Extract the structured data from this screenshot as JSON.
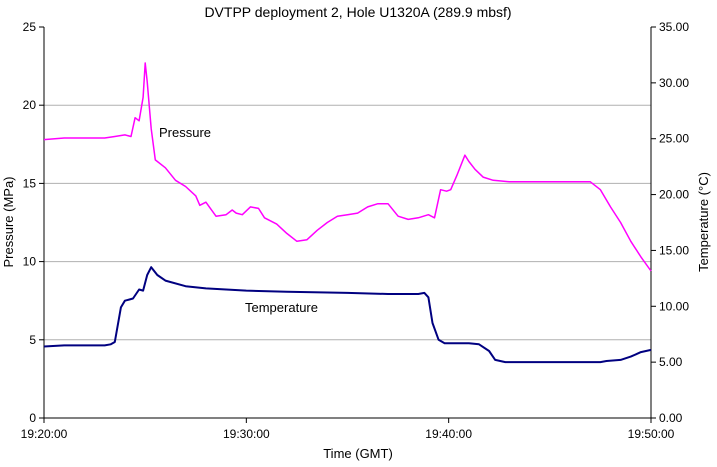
{
  "chart_data": {
    "type": "line",
    "title": "DVTPP deployment 2, Hole U1320A (289.9 mbsf)",
    "xlabel": "Time (GMT)",
    "ylabel_left": "Pressure (MPa)",
    "ylabel_right": "Temperature (°C)",
    "x_ticks": [
      "19:20:00",
      "19:30:00",
      "19:40:00",
      "19:50:00"
    ],
    "x_range_minutes": [
      0,
      30
    ],
    "y_left_ticks": [
      "0",
      "5",
      "10",
      "15",
      "20",
      "25"
    ],
    "y_left_range": [
      0,
      25
    ],
    "y_right_ticks": [
      "0.00",
      "5.00",
      "10.00",
      "15.00",
      "20.00",
      "25.00",
      "30.00",
      "35.00"
    ],
    "y_right_range": [
      0,
      35
    ],
    "grid": "horizontal",
    "colors": {
      "pressure": "#ff00ff",
      "temperature": "#000080",
      "grid": "#b0b0b0",
      "axis": "#000000"
    },
    "series": [
      {
        "name": "Pressure",
        "axis": "left",
        "x": [
          0,
          1,
          2,
          3,
          3.5,
          4,
          4.3,
          4.5,
          4.7,
          4.9,
          5.0,
          5.1,
          5.3,
          5.5,
          6.0,
          6.5,
          7.0,
          7.5,
          7.7,
          8.0,
          8.5,
          9.0,
          9.3,
          9.5,
          9.8,
          10.2,
          10.6,
          10.9,
          11.5,
          12.0,
          12.5,
          13.0,
          13.5,
          14.0,
          14.5,
          15.0,
          15.5,
          16.0,
          16.5,
          17.0,
          17.5,
          18.0,
          18.5,
          19.0,
          19.3,
          19.6,
          19.9,
          20.1,
          20.4,
          20.8,
          21.0,
          21.3,
          21.7,
          22.2,
          23.0,
          25.0,
          27.0,
          27.5,
          28.0,
          28.5,
          29.0,
          29.5,
          30.0
        ],
        "values": [
          17.8,
          17.9,
          17.9,
          17.9,
          18.0,
          18.1,
          18.0,
          19.2,
          19.0,
          20.5,
          22.7,
          21.5,
          18.5,
          16.5,
          16.0,
          15.2,
          14.8,
          14.2,
          13.6,
          13.8,
          12.9,
          13.0,
          13.3,
          13.1,
          13.0,
          13.5,
          13.4,
          12.8,
          12.4,
          11.8,
          11.3,
          11.4,
          12.0,
          12.5,
          12.9,
          13.0,
          13.1,
          13.5,
          13.7,
          13.7,
          12.9,
          12.7,
          12.8,
          13.0,
          12.8,
          14.6,
          14.5,
          14.6,
          15.5,
          16.8,
          16.4,
          15.9,
          15.4,
          15.2,
          15.1,
          15.1,
          15.1,
          14.6,
          13.5,
          12.5,
          11.3,
          10.3,
          9.4
        ]
      },
      {
        "name": "Temperature",
        "axis": "right",
        "x": [
          0,
          1,
          2,
          3,
          3.3,
          3.5,
          3.8,
          4.0,
          4.2,
          4.4,
          4.7,
          4.9,
          5.1,
          5.3,
          5.6,
          6.0,
          7.0,
          8.0,
          10.0,
          12.0,
          15.0,
          17.0,
          18.5,
          18.8,
          19.0,
          19.2,
          19.5,
          19.8,
          20.2,
          21.0,
          21.5,
          22.0,
          22.3,
          22.8,
          24.0,
          26.0,
          27.0,
          27.5,
          27.8,
          28.5,
          29.0,
          29.5,
          30.0
        ],
        "values": [
          6.4,
          6.5,
          6.5,
          6.5,
          6.6,
          6.8,
          9.9,
          10.5,
          10.6,
          10.7,
          11.5,
          11.4,
          12.8,
          13.5,
          12.8,
          12.3,
          11.8,
          11.6,
          11.4,
          11.3,
          11.2,
          11.1,
          11.1,
          11.2,
          10.8,
          8.5,
          7.0,
          6.7,
          6.7,
          6.7,
          6.6,
          6.0,
          5.2,
          5.0,
          5.0,
          5.0,
          5.0,
          5.0,
          5.1,
          5.2,
          5.5,
          5.9,
          6.1
        ]
      }
    ],
    "annotations": [
      {
        "text": "Pressure",
        "series": "Pressure"
      },
      {
        "text": "Temperature",
        "series": "Temperature"
      }
    ]
  }
}
